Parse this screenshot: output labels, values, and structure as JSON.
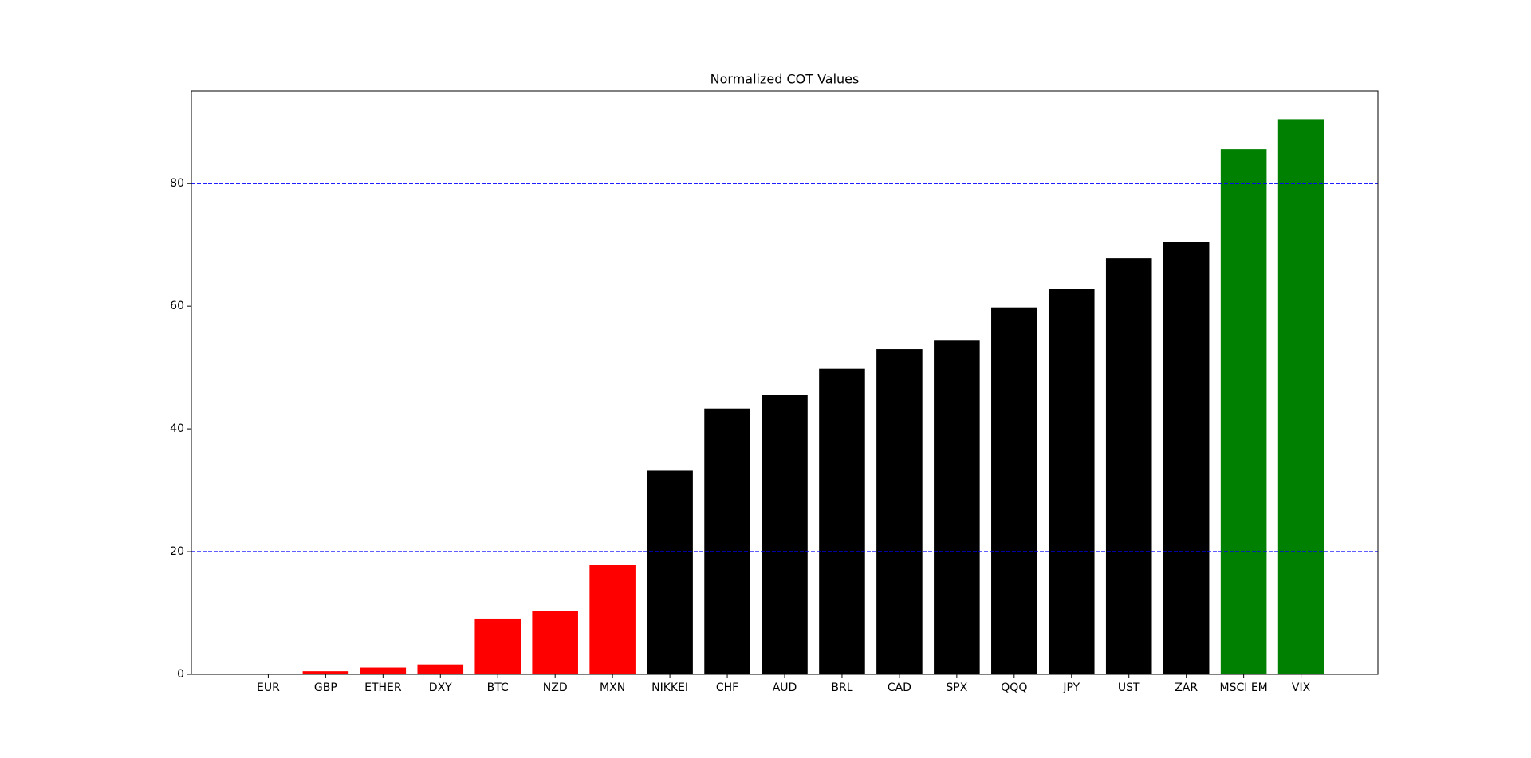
{
  "chart_data": {
    "type": "bar",
    "title": "Normalized COT Values",
    "categories": [
      "EUR",
      "GBP",
      "ETHER",
      "DXY",
      "BTC",
      "NZD",
      "MXN",
      "NIKKEI",
      "CHF",
      "AUD",
      "BRL",
      "CAD",
      "SPX",
      "QQQ",
      "JPY",
      "UST",
      "ZAR",
      "MSCI EM",
      "VIX"
    ],
    "values": [
      0,
      0.5,
      1.1,
      1.6,
      9.1,
      10.3,
      17.8,
      33.2,
      43.3,
      45.6,
      49.8,
      53.0,
      54.4,
      59.8,
      62.8,
      67.8,
      70.5,
      85.6,
      90.5
    ],
    "colors": [
      "red",
      "red",
      "red",
      "red",
      "red",
      "red",
      "red",
      "black",
      "black",
      "black",
      "black",
      "black",
      "black",
      "black",
      "black",
      "black",
      "black",
      "green",
      "green"
    ],
    "ylim": [
      0,
      95.1
    ],
    "yticks": [
      0,
      20,
      40,
      60,
      80
    ],
    "hlines": [
      20,
      80
    ],
    "hline_color": "blue"
  }
}
